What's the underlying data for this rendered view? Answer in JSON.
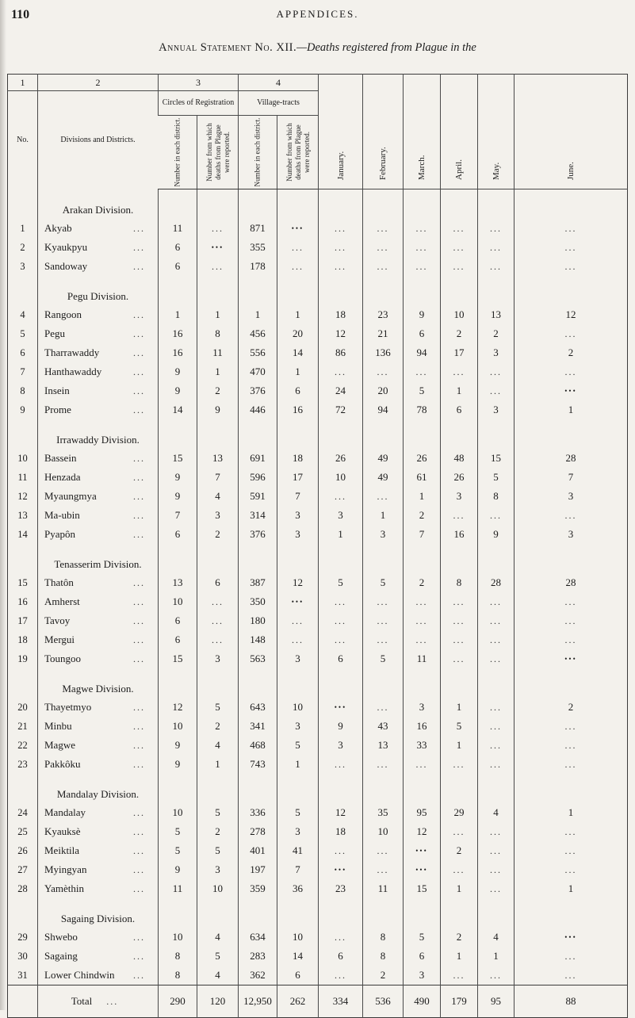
{
  "page": {
    "number": "110",
    "header": "APPENDICES.",
    "title_main": "Annual Statement No. XII.",
    "title_rest": "—Deaths registered from Plague in the"
  },
  "table": {
    "leader": "...",
    "col_numbers": [
      "1",
      "2",
      "3",
      "4"
    ],
    "headers": {
      "no": "No.",
      "divisions": "Divisions and Districts.",
      "circles_group": "Circles of Registration",
      "village_group": "Village-tracts",
      "sub_district": "Number in each district.",
      "sub_reported": "Number from which deaths from Plague were reported.",
      "months": [
        "January.",
        "February.",
        "March.",
        "April.",
        "May.",
        "June."
      ]
    },
    "sections": [
      {
        "title": "Arakan Division.",
        "rows": [
          {
            "no": "1",
            "district": "Akyab",
            "values": [
              "11",
              "...",
              "871",
              "•••",
              "...",
              "...",
              "...",
              "...",
              "...",
              "..."
            ]
          },
          {
            "no": "2",
            "district": "Kyaukpyu",
            "values": [
              "6",
              "•••",
              "355",
              "...",
              "...",
              "...",
              "...",
              "...",
              "...",
              "..."
            ]
          },
          {
            "no": "3",
            "district": "Sandoway",
            "values": [
              "6",
              "...",
              "178",
              "...",
              "...",
              "...",
              "...",
              "...",
              "...",
              "..."
            ]
          }
        ]
      },
      {
        "title": "Pegu Division.",
        "rows": [
          {
            "no": "4",
            "district": "Rangoon",
            "values": [
              "1",
              "1",
              "1",
              "1",
              "18",
              "23",
              "9",
              "10",
              "13",
              "12"
            ]
          },
          {
            "no": "5",
            "district": "Pegu",
            "values": [
              "16",
              "8",
              "456",
              "20",
              "12",
              "21",
              "6",
              "2",
              "2",
              "..."
            ]
          },
          {
            "no": "6",
            "district": "Tharrawaddy",
            "values": [
              "16",
              "11",
              "556",
              "14",
              "86",
              "136",
              "94",
              "17",
              "3",
              "2"
            ]
          },
          {
            "no": "7",
            "district": "Hanthawaddy",
            "values": [
              "9",
              "1",
              "470",
              "1",
              "...",
              "...",
              "...",
              "...",
              "...",
              "..."
            ]
          },
          {
            "no": "8",
            "district": "Insein",
            "values": [
              "9",
              "2",
              "376",
              "6",
              "24",
              "20",
              "5",
              "1",
              "...",
              "•••"
            ]
          },
          {
            "no": "9",
            "district": "Prome",
            "values": [
              "14",
              "9",
              "446",
              "16",
              "72",
              "94",
              "78",
              "6",
              "3",
              "1"
            ]
          }
        ]
      },
      {
        "title": "Irrawaddy Division.",
        "rows": [
          {
            "no": "10",
            "district": "Bassein",
            "values": [
              "15",
              "13",
              "691",
              "18",
              "26",
              "49",
              "26",
              "48",
              "15",
              "28"
            ]
          },
          {
            "no": "11",
            "district": "Henzada",
            "values": [
              "9",
              "7",
              "596",
              "17",
              "10",
              "49",
              "61",
              "26",
              "5",
              "7"
            ]
          },
          {
            "no": "12",
            "district": "Myaungmya",
            "values": [
              "9",
              "4",
              "591",
              "7",
              "...",
              "...",
              "1",
              "3",
              "8",
              "3"
            ]
          },
          {
            "no": "13",
            "district": "Ma-ubin",
            "values": [
              "7",
              "3",
              "314",
              "3",
              "3",
              "1",
              "2",
              "...",
              "...",
              "..."
            ]
          },
          {
            "no": "14",
            "district": "Pyapôn",
            "values": [
              "6",
              "2",
              "376",
              "3",
              "1",
              "3",
              "7",
              "16",
              "9",
              "3"
            ]
          }
        ]
      },
      {
        "title": "Tenasserim Division.",
        "rows": [
          {
            "no": "15",
            "district": "Thatôn",
            "values": [
              "13",
              "6",
              "387",
              "12",
              "5",
              "5",
              "2",
              "8",
              "28",
              "28"
            ]
          },
          {
            "no": "16",
            "district": "Amherst",
            "values": [
              "10",
              "...",
              "350",
              "•••",
              "...",
              "...",
              "...",
              "...",
              "...",
              "..."
            ]
          },
          {
            "no": "17",
            "district": "Tavoy",
            "values": [
              "6",
              "...",
              "180",
              "...",
              "...",
              "...",
              "...",
              "...",
              "...",
              "..."
            ]
          },
          {
            "no": "18",
            "district": "Mergui",
            "values": [
              "6",
              "...",
              "148",
              "...",
              "...",
              "...",
              "...",
              "...",
              "...",
              "..."
            ]
          },
          {
            "no": "19",
            "district": "Toungoo",
            "values": [
              "15",
              "3",
              "563",
              "3",
              "6",
              "5",
              "11",
              "...",
              "...",
              "•••"
            ]
          }
        ]
      },
      {
        "title": "Magwe Division.",
        "rows": [
          {
            "no": "20",
            "district": "Thayetmyo",
            "values": [
              "12",
              "5",
              "643",
              "10",
              "•••",
              "...",
              "3",
              "1",
              "...",
              "2"
            ]
          },
          {
            "no": "21",
            "district": "Minbu",
            "values": [
              "10",
              "2",
              "341",
              "3",
              "9",
              "43",
              "16",
              "5",
              "...",
              "..."
            ]
          },
          {
            "no": "22",
            "district": "Magwe",
            "values": [
              "9",
              "4",
              "468",
              "5",
              "3",
              "13",
              "33",
              "1",
              "...",
              "..."
            ]
          },
          {
            "no": "23",
            "district": "Pakkôku",
            "values": [
              "9",
              "1",
              "743",
              "1",
              "...",
              "...",
              "...",
              "...",
              "...",
              "..."
            ]
          }
        ]
      },
      {
        "title": "Mandalay Division.",
        "rows": [
          {
            "no": "24",
            "district": "Mandalay",
            "values": [
              "10",
              "5",
              "336",
              "5",
              "12",
              "35",
              "95",
              "29",
              "4",
              "1"
            ]
          },
          {
            "no": "25",
            "district": "Kyauksè",
            "values": [
              "5",
              "2",
              "278",
              "3",
              "18",
              "10",
              "12",
              "...",
              "...",
              "..."
            ]
          },
          {
            "no": "26",
            "district": "Meiktila",
            "values": [
              "5",
              "5",
              "401",
              "41",
              "...",
              "...",
              "•••",
              "2",
              "...",
              "..."
            ]
          },
          {
            "no": "27",
            "district": "Myingyan",
            "values": [
              "9",
              "3",
              "197",
              "7",
              "•••",
              "...",
              "•••",
              "...",
              "...",
              "..."
            ]
          },
          {
            "no": "28",
            "district": "Yamèthin",
            "values": [
              "11",
              "10",
              "359",
              "36",
              "23",
              "11",
              "15",
              "1",
              "...",
              "1"
            ]
          }
        ]
      },
      {
        "title": "Sagaing Division.",
        "rows": [
          {
            "no": "29",
            "district": "Shwebo",
            "values": [
              "10",
              "4",
              "634",
              "10",
              "...",
              "8",
              "5",
              "2",
              "4",
              "•••"
            ]
          },
          {
            "no": "30",
            "district": "Sagaing",
            "values": [
              "8",
              "5",
              "283",
              "14",
              "6",
              "8",
              "6",
              "1",
              "1",
              "..."
            ]
          },
          {
            "no": "31",
            "district": "Lower Chindwin",
            "values": [
              "8",
              "4",
              "362",
              "6",
              "...",
              "2",
              "3",
              "...",
              "...",
              "..."
            ]
          }
        ]
      }
    ],
    "total": {
      "label": "Total",
      "values": [
        "290",
        "120",
        "12,950",
        "262",
        "334",
        "536",
        "490",
        "179",
        "95",
        "88"
      ]
    }
  }
}
